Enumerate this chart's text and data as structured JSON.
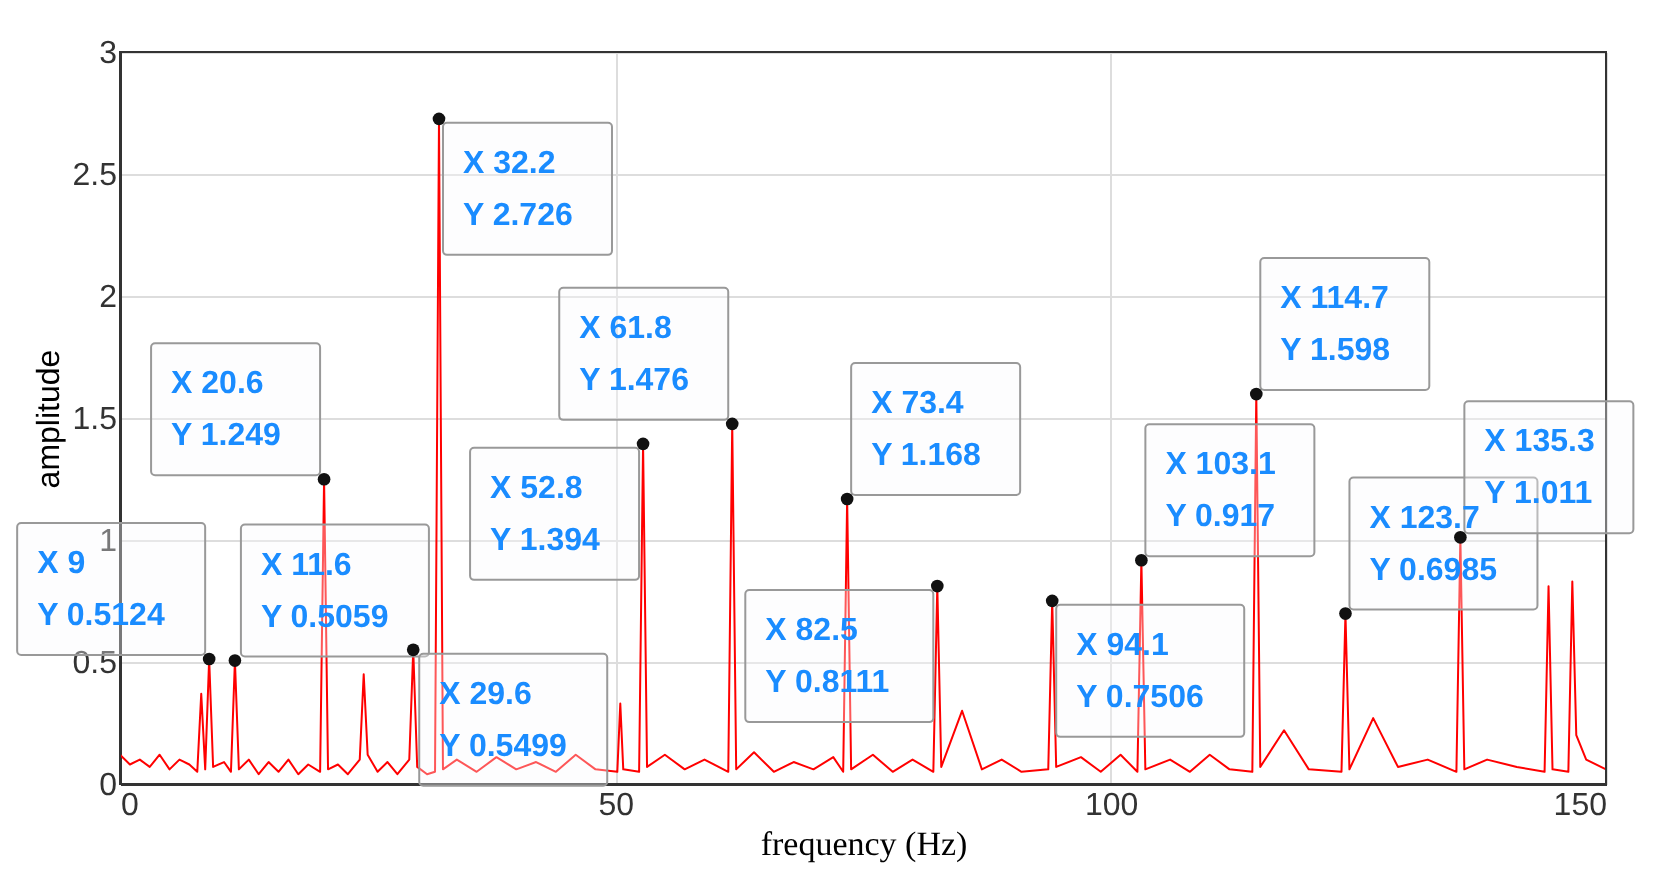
{
  "chart_data": {
    "type": "line",
    "xlabel": "frequency (Hz)",
    "ylabel": "amplitude",
    "xlim": [
      0,
      150
    ],
    "ylim": [
      0,
      3
    ],
    "xticks": [
      0,
      50,
      100,
      150
    ],
    "yticks": [
      0,
      0.5,
      1,
      1.5,
      2,
      2.5,
      3
    ],
    "grid": true,
    "series": [
      {
        "color": "#ff0000",
        "x": [
          0,
          1,
          2,
          3,
          4,
          5,
          6,
          7,
          7.8,
          8.2,
          8.6,
          9,
          9.4,
          10.5,
          11.2,
          11.6,
          12,
          13,
          14,
          15,
          16,
          17,
          18,
          19,
          20.2,
          20.6,
          21,
          22,
          23,
          24.2,
          24.6,
          25,
          26,
          27,
          28,
          29.2,
          29.6,
          30,
          31,
          31.8,
          32.2,
          32.6,
          34,
          36,
          38,
          40,
          42,
          44,
          46,
          48,
          50.2,
          50.5,
          50.8,
          52.4,
          52.8,
          53.2,
          55,
          57,
          59,
          61.4,
          61.8,
          62.2,
          64,
          66,
          68,
          70,
          72,
          73,
          73.4,
          73.8,
          76,
          78,
          80,
          82.1,
          82.5,
          82.9,
          85,
          87,
          89,
          91,
          93.7,
          94.1,
          94.5,
          97,
          99,
          101,
          102.7,
          103.1,
          103.5,
          106,
          108,
          110,
          112,
          114.3,
          114.7,
          115.1,
          117.5,
          120,
          123.3,
          123.7,
          124.1,
          126.5,
          129,
          132,
          134.9,
          135.3,
          135.7,
          138,
          141,
          143.8,
          144.2,
          144.6,
          146.2,
          146.6,
          147,
          148,
          150
        ],
        "values": [
          0.12,
          0.08,
          0.1,
          0.07,
          0.12,
          0.06,
          0.1,
          0.08,
          0.05,
          0.37,
          0.06,
          0.5124,
          0.07,
          0.09,
          0.05,
          0.5059,
          0.06,
          0.1,
          0.04,
          0.09,
          0.05,
          0.1,
          0.04,
          0.08,
          0.05,
          1.249,
          0.06,
          0.08,
          0.04,
          0.1,
          0.45,
          0.12,
          0.05,
          0.09,
          0.04,
          0.1,
          0.5499,
          0.07,
          0.04,
          0.05,
          2.726,
          0.06,
          0.1,
          0.05,
          0.11,
          0.06,
          0.09,
          0.05,
          0.12,
          0.06,
          0.05,
          0.33,
          0.06,
          0.05,
          1.394,
          0.07,
          0.12,
          0.06,
          0.1,
          0.05,
          1.476,
          0.06,
          0.13,
          0.05,
          0.09,
          0.06,
          0.11,
          0.05,
          1.168,
          0.06,
          0.12,
          0.05,
          0.1,
          0.05,
          0.8111,
          0.07,
          0.3,
          0.06,
          0.1,
          0.05,
          0.06,
          0.7506,
          0.07,
          0.11,
          0.05,
          0.12,
          0.05,
          0.917,
          0.06,
          0.1,
          0.05,
          0.12,
          0.06,
          0.05,
          1.598,
          0.07,
          0.22,
          0.06,
          0.05,
          0.6985,
          0.06,
          0.27,
          0.07,
          0.1,
          0.05,
          1.011,
          0.06,
          0.1,
          0.07,
          0.05,
          0.81,
          0.06,
          0.05,
          0.83,
          0.2,
          0.1,
          0.06
        ]
      }
    ],
    "annotations": [
      {
        "text": "X 9\nY 0.5124",
        "x": 9,
        "y": 0.5124
      },
      {
        "text": "X 11.6\nY 0.5059",
        "x": 11.6,
        "y": 0.5059
      },
      {
        "text": "X 20.6\nY 1.249",
        "x": 20.6,
        "y": 1.249
      },
      {
        "text": "X 29.6\nY 0.5499",
        "x": 29.6,
        "y": 0.5499
      },
      {
        "text": "X 32.2\nY 2.726",
        "x": 32.2,
        "y": 2.726
      },
      {
        "text": "X 52.8\nY 1.394",
        "x": 52.8,
        "y": 1.394
      },
      {
        "text": "X 61.8\nY 1.476",
        "x": 61.8,
        "y": 1.476
      },
      {
        "text": "X 73.4\nY 1.168",
        "x": 73.4,
        "y": 1.168
      },
      {
        "text": "X 82.5\nY 0.8111",
        "x": 82.5,
        "y": 0.8111
      },
      {
        "text": "X 94.1\nY 0.7506",
        "x": 94.1,
        "y": 0.7506
      },
      {
        "text": "X 103.1\nY 0.917",
        "x": 103.1,
        "y": 0.917
      },
      {
        "text": "X 114.7\nY 1.598",
        "x": 114.7,
        "y": 1.598
      },
      {
        "text": "X 123.7\nY 0.6985",
        "x": 123.7,
        "y": 0.6985
      },
      {
        "text": "X 135.3\nY 1.011",
        "x": 135.3,
        "y": 1.011
      }
    ]
  }
}
